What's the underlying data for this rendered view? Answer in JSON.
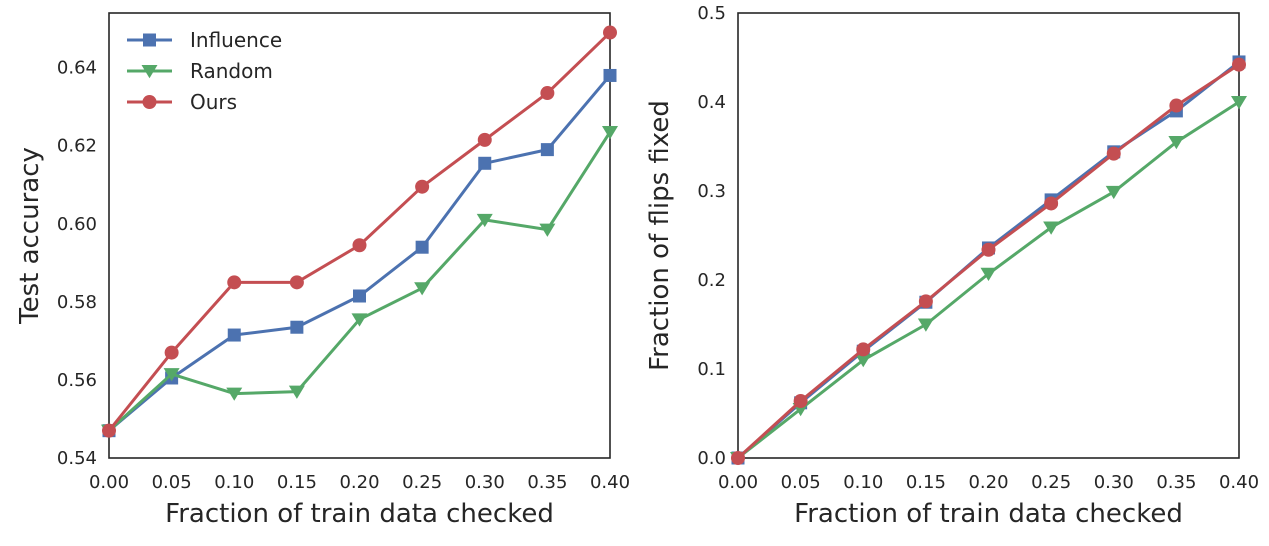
{
  "chart_data": [
    {
      "type": "line",
      "title": "",
      "xlabel": "Fraction of train data checked",
      "ylabel": "Test accuracy",
      "xlim": [
        0.0,
        0.4
      ],
      "ylim": [
        0.54,
        0.654
      ],
      "xticks": [
        0.0,
        0.05,
        0.1,
        0.15,
        0.2,
        0.25,
        0.3,
        0.35,
        0.4
      ],
      "xtick_labels": [
        "0.00",
        "0.05",
        "0.10",
        "0.15",
        "0.20",
        "0.25",
        "0.30",
        "0.35",
        "0.40"
      ],
      "yticks": [
        0.54,
        0.56,
        0.58,
        0.6,
        0.62,
        0.64
      ],
      "ytick_labels": [
        "0.54",
        "0.56",
        "0.58",
        "0.60",
        "0.62",
        "0.64"
      ],
      "grid": false,
      "legend": "top-left",
      "x": [
        0.0,
        0.05,
        0.1,
        0.15,
        0.2,
        0.25,
        0.3,
        0.35,
        0.4
      ],
      "series": [
        {
          "name": "Influence",
          "marker": "square",
          "color": "#4c72b0",
          "values": [
            0.547,
            0.5605,
            0.5715,
            0.5735,
            0.5815,
            0.594,
            0.6155,
            0.619,
            0.638
          ]
        },
        {
          "name": "Random",
          "marker": "triangle-down",
          "color": "#55a868",
          "values": [
            0.547,
            0.5615,
            0.5565,
            0.557,
            0.5755,
            0.5835,
            0.601,
            0.5985,
            0.6235
          ]
        },
        {
          "name": "Ours",
          "marker": "circle",
          "color": "#c44e52",
          "values": [
            0.547,
            0.567,
            0.585,
            0.585,
            0.5945,
            0.6095,
            0.6215,
            0.6335,
            0.649
          ]
        }
      ]
    },
    {
      "type": "line",
      "title": "",
      "xlabel": "Fraction of train data checked",
      "ylabel": "Fraction of flips fixed",
      "xlim": [
        0.0,
        0.4
      ],
      "ylim": [
        0.0,
        0.5
      ],
      "xticks": [
        0.0,
        0.05,
        0.1,
        0.15,
        0.2,
        0.25,
        0.3,
        0.35,
        0.4
      ],
      "xtick_labels": [
        "0.00",
        "0.05",
        "0.10",
        "0.15",
        "0.20",
        "0.25",
        "0.30",
        "0.35",
        "0.40"
      ],
      "yticks": [
        0.0,
        0.1,
        0.2,
        0.3,
        0.4,
        0.5
      ],
      "ytick_labels": [
        "0.0",
        "0.1",
        "0.2",
        "0.3",
        "0.4",
        "0.5"
      ],
      "grid": false,
      "legend": "none",
      "x": [
        0.0,
        0.05,
        0.1,
        0.15,
        0.2,
        0.25,
        0.3,
        0.35,
        0.4
      ],
      "series": [
        {
          "name": "Influence",
          "marker": "square",
          "color": "#4c72b0",
          "values": [
            0.0,
            0.062,
            0.12,
            0.175,
            0.236,
            0.29,
            0.344,
            0.39,
            0.445
          ]
        },
        {
          "name": "Random",
          "marker": "triangle-down",
          "color": "#55a868",
          "values": [
            0.0,
            0.055,
            0.11,
            0.15,
            0.207,
            0.259,
            0.299,
            0.355,
            0.4
          ]
        },
        {
          "name": "Ours",
          "marker": "circle",
          "color": "#c44e52",
          "values": [
            0.0,
            0.064,
            0.122,
            0.176,
            0.234,
            0.286,
            0.342,
            0.396,
            0.442
          ]
        }
      ]
    }
  ]
}
